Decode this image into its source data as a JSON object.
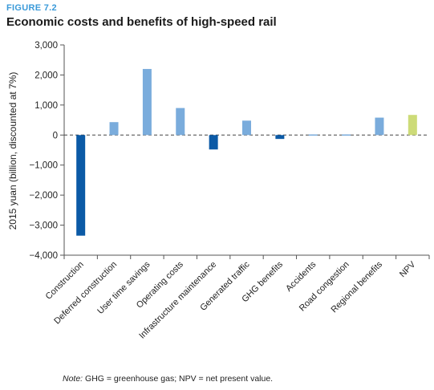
{
  "figure_label": "FIGURE 7.2",
  "title": "Economic costs and benefits of high-speed rail",
  "note_prefix": "Note:",
  "note_text": " GHG = greenhouse gas; NPV = net present value.",
  "chart_data": {
    "type": "bar",
    "title": "Economic costs and benefits of high-speed rail",
    "xlabel": "",
    "ylabel": "2015 yuan (billion, discounted at 7%)",
    "ylim": [
      -4000,
      3000
    ],
    "yticks": [
      3000,
      2000,
      1000,
      0,
      -1000,
      -2000,
      -3000,
      -4000
    ],
    "ytick_labels": [
      "3,000",
      "2,000",
      "1,000",
      "0",
      "−1,000",
      "−2,000",
      "−3,000",
      "−4,000"
    ],
    "grid": false,
    "zero_line": "dashed",
    "categories": [
      "Construction",
      "Deferred construction",
      "User time savings",
      "Operating costs",
      "Infrastructure maintenance",
      "Generated traffic",
      "GHG benefits",
      "Accidents",
      "Road congestion",
      "Regional benefits",
      "NPV"
    ],
    "values": [
      -3350,
      430,
      2200,
      900,
      -480,
      480,
      -130,
      20,
      20,
      580,
      670
    ],
    "colors": [
      "#0b5aa6",
      "#7aacdc",
      "#7aacdc",
      "#7aacdc",
      "#0b5aa6",
      "#7aacdc",
      "#0b5aa6",
      "#7aacdc",
      "#7aacdc",
      "#7aacdc",
      "#cddb78"
    ]
  }
}
